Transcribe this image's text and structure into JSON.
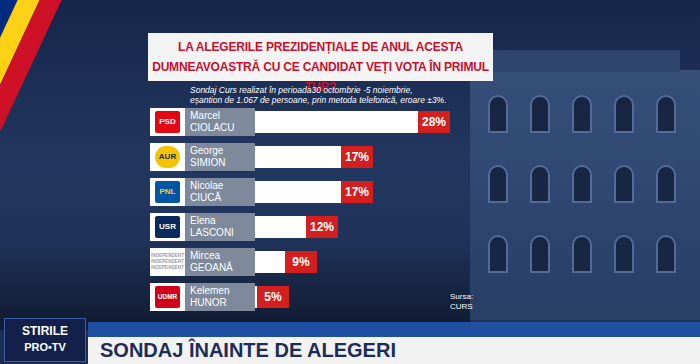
{
  "chart_data": {
    "type": "bar",
    "orientation": "horizontal",
    "title": "LA ALEGERILE PREZIDENȚIALE DE ANUL ACESTA\nDUMNEAVOASTRĂ CU CE CANDIDAT VEȚI VOTA ÎN PRIMUL TUR?",
    "subtitle": "Sondaj Curs realizat în perioada30 octombrie -5 noiembrie,\neșantion de 1.067 de persoane, prin metoda telefonică, eroare ±3%.",
    "categories": [
      "Marcel CIOLACU",
      "George SIMION",
      "Nicolae CIUCĂ",
      "Elena LASCONI",
      "Mircea GEOANĂ",
      "Kelemen HUNOR"
    ],
    "parties": [
      "PSD",
      "AUR",
      "PNL",
      "USR",
      "INDEPENDENT",
      "UDMR"
    ],
    "values": [
      28,
      17,
      17,
      12,
      9,
      5
    ],
    "value_labels": [
      "28%",
      "17%",
      "17%",
      "12%",
      "9%",
      "5%"
    ],
    "data_labels": true,
    "color": "#ffffff",
    "xlim": [
      0,
      30
    ],
    "tick_labels": false,
    "grid": false,
    "source": "Sursa: CURS"
  },
  "broadcast": {
    "channel": "STIRILE",
    "network": "PRO•TV",
    "headline": "SONDAJ ÎNAINTE DE ALEGERI"
  }
}
